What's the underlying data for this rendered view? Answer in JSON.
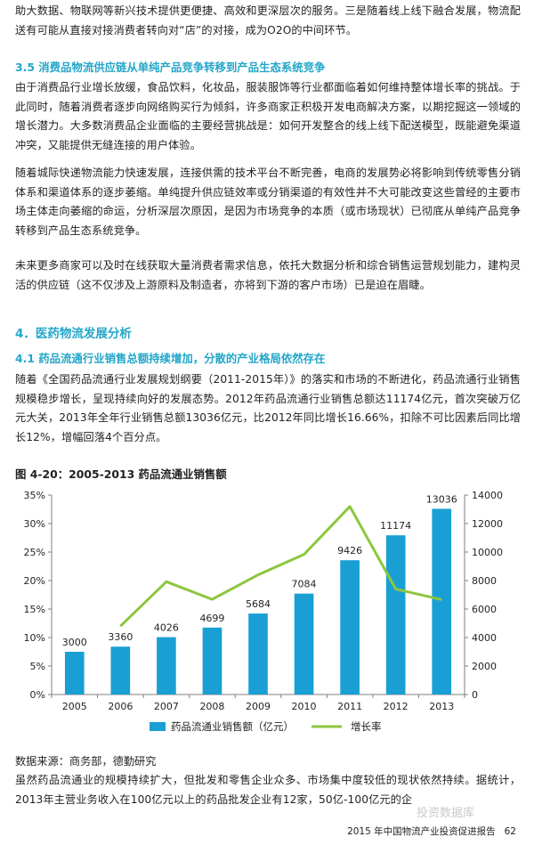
{
  "paragraphs": [
    "助大数据、物联网等新兴技术提供更便捷、高效和更深层次的服务。三是随着线上线下融合发展，物流配送有可能从直接对接消费者转向对“店”的对接，成为O2O的中间环节。",
    "由于消费品行业增长放缓，食品饮料，化妆品，服装服饰等行业都面临着如何维持整体增长率的挑战。于此同时，随着消费者逐步向网络购买行为倾斜，许多商家正积极开发电商解决方案，以期挖掘这一领域的增长潜力。大多数消费品企业面临的主要经营挑战是：如何开发整合的线上线下配送模型，既能避免渠道冲突，又能提供无缝连接的用户体验。",
    "随着城际快递物流能力快速发展，连接供需的技术平台不断完善，电商的发展势必将影响到传统零售分销体系和渠道体系的逐步萎缩。单纯提升供应链效率或分销渠道的有效性并不大可能改变这些曾经的主要市场主体走向萎缩的命运，分析深层次原因，是因为市场竞争的本质（或市场现状）已彻底从单纯产品竞争转移到产品生态系统竞争。",
    "未来更多商家可以及时在线获取大量消费者需求信息，依托大数据分析和综合销售运营规划能力，建构灵活的供应链（这不仅涉及上游原料及制造者，亦将到下游的客户市场）已是迫在眉睫。",
    "随着《全国药品流通行业发展规划纲要（2011-2015年）》的落实和市场的不断进化，药品流通行业销售规模稳步增长，呈现持续向好的发展态势。2012年药品流通行业销售总额达11174亿元，首次突破万亿元大关，2013年全年行业销售总额13036亿元，比2012年同比增长16.66%，扣除不可比因素后同比增长12%，增幅回落4个百分点。",
    "虽然药品流通业的规模持续扩大，但批发和零售企业众多、市场集中度较低的现状依然持续。据统计，2013年主营业务收入在100亿元以上的药品批发企业有12家，50亿-100亿元的企"
  ],
  "headings": {
    "h35": "3.5 消费品物流供应链从单纯产品竞争转移到产品生态系统竞争",
    "h4": "4．医药物流发展分析",
    "h41": "4.1 药品流通行业销售总额持续增加，分散的产业格局依然存在"
  },
  "figure_title": "图 4-20：2005-2013 药品流通业销售额",
  "source": "数据来源：商务部，德勤研究",
  "footer": {
    "report": "2015 年中国物流产业投资促进报告",
    "page": "62"
  },
  "watermark": "投资数据库",
  "colors": {
    "heading": "#23a6c9",
    "bar": "#1a9fd4",
    "line": "#8cc63f"
  },
  "chart_data": {
    "type": "bar",
    "categories": [
      "2005",
      "2006",
      "2007",
      "2008",
      "2009",
      "2010",
      "2011",
      "2012",
      "2013"
    ],
    "series": [
      {
        "name": "药品流通业销售额（亿元）",
        "axis": "right",
        "type": "bar",
        "values": [
          3000,
          3360,
          4026,
          4699,
          5684,
          7084,
          9426,
          11174,
          13036
        ]
      },
      {
        "name": "增长率",
        "axis": "left",
        "type": "line",
        "values": [
          null,
          12,
          19.8,
          16.7,
          21,
          24.6,
          33,
          18.5,
          16.66
        ]
      }
    ],
    "left_axis": {
      "ylim": [
        0,
        35
      ],
      "ticks": [
        "0%",
        "5%",
        "10%",
        "15%",
        "20%",
        "25%",
        "30%",
        "35%"
      ]
    },
    "right_axis": {
      "ylim": [
        0,
        14000
      ],
      "ticks": [
        "0",
        "2000",
        "4000",
        "6000",
        "8000",
        "10000",
        "12000",
        "14000"
      ]
    },
    "legend_position": "bottom",
    "grid": false
  }
}
